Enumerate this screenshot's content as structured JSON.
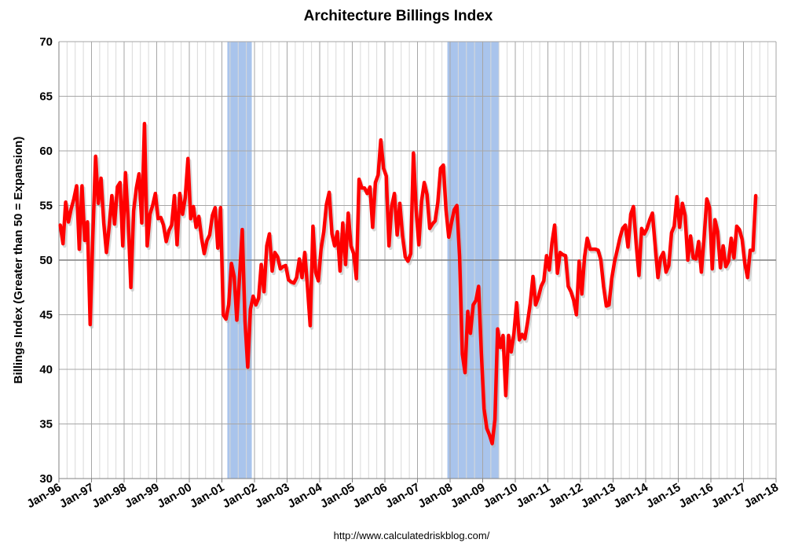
{
  "chart_data": {
    "type": "line",
    "title": "Architecture Billings Index",
    "ylabel": "Billings Index (Greater than 50 = Expansion)",
    "xlabel": "",
    "source": "http://www.calculatedriskblog.com/",
    "ylim": [
      30,
      70
    ],
    "yticks": [
      "30",
      "35",
      "40",
      "45",
      "50",
      "55",
      "60",
      "65",
      "70"
    ],
    "x_axis": {
      "start": "1996-01",
      "end": "2018-01",
      "unit": "month"
    },
    "xtick_labels": [
      "Jan-96",
      "Jan-97",
      "Jan-98",
      "Jan-99",
      "Jan-00",
      "Jan-01",
      "Jan-02",
      "Jan-03",
      "Jan-04",
      "Jan-05",
      "Jan-06",
      "Jan-07",
      "Jan-08",
      "Jan-09",
      "Jan-10",
      "Jan-11",
      "Jan-12",
      "Jan-13",
      "Jan-14",
      "Jan-15",
      "Jan-16",
      "Jan-17",
      "Jan-18"
    ],
    "grid": {
      "horizontal": true,
      "vertical_monthly": true
    },
    "reference_line": 50,
    "recessions": [
      {
        "start": "2001-03",
        "end": "2001-11"
      },
      {
        "start": "2007-12",
        "end": "2009-06"
      }
    ],
    "colors": {
      "series": "#ff0000",
      "recession": "#a9c4ec",
      "reference": "#7f7f7f",
      "grid_major": "#a6a6a6",
      "grid_minor": "#d9d9d9"
    },
    "series": [
      {
        "start": "1996-01",
        "frequency": "monthly",
        "values": [
          53.2,
          51.5,
          55.3,
          53.5,
          54.7,
          55.6,
          56.8,
          51.0,
          56.8,
          51.8,
          53.5,
          44.1,
          52.3,
          59.5,
          55.2,
          57.5,
          53.4,
          50.7,
          53.1,
          55.9,
          53.3,
          56.7,
          57.1,
          51.3,
          58.0,
          53.6,
          47.5,
          54.5,
          56.6,
          57.9,
          53.4,
          62.5,
          51.3,
          54.2,
          55.0,
          56.1,
          53.8,
          53.9,
          53.2,
          51.7,
          52.7,
          53.2,
          55.9,
          51.4,
          56.1,
          54.2,
          55.7,
          59.3,
          53.8,
          54.9,
          53.0,
          54.0,
          52.0,
          50.6,
          51.8,
          52.3,
          54.1,
          54.8,
          51.1,
          54.8,
          45.0,
          44.6,
          45.9,
          49.7,
          48.5,
          44.5,
          48.5,
          52.8,
          44.4,
          40.2,
          45.5,
          46.7,
          45.9,
          46.5,
          49.6,
          47.1,
          51.3,
          52.4,
          49.0,
          50.7,
          50.3,
          49.2,
          49.4,
          49.5,
          48.2,
          48.0,
          47.9,
          48.4,
          50.1,
          48.4,
          50.7,
          47.6,
          44.0,
          53.1,
          48.9,
          48.1,
          51.0,
          52.6,
          55.1,
          56.2,
          52.4,
          51.3,
          52.6,
          49.0,
          53.4,
          49.6,
          54.3,
          51.3,
          50.6,
          48.3,
          57.4,
          56.6,
          56.6,
          56.1,
          56.7,
          53.0,
          57.1,
          57.8,
          61.0,
          58.4,
          57.7,
          51.3,
          54.9,
          56.1,
          52.3,
          55.2,
          52.2,
          50.3,
          49.9,
          50.6,
          59.8,
          54.6,
          51.4,
          55.4,
          57.1,
          56.0,
          52.9,
          53.3,
          53.6,
          55.3,
          58.4,
          58.7,
          54.6,
          52.1,
          53.4,
          54.6,
          55.0,
          50.3,
          41.4,
          39.7,
          45.3,
          43.3,
          45.9,
          46.3,
          47.6,
          41.5,
          36.4,
          34.6,
          34.0,
          33.2,
          35.4,
          43.7,
          42.0,
          43.1,
          37.6,
          43.1,
          41.6,
          43.3,
          46.1,
          42.7,
          43.2,
          42.8,
          44.3,
          46.0,
          48.5,
          45.9,
          46.6,
          47.6,
          48.1,
          50.4,
          49.1,
          51.6,
          53.2,
          48.8,
          50.7,
          50.5,
          50.4,
          47.6,
          47.1,
          46.3,
          45.0,
          49.9,
          46.9,
          50.3,
          52.0,
          51.0,
          51.0,
          51.0,
          50.9,
          50.0,
          47.6,
          45.8,
          45.9,
          48.3,
          49.8,
          50.9,
          52.0,
          52.9,
          53.2,
          51.2,
          54.2,
          54.9,
          51.5,
          48.6,
          52.9,
          52.4,
          52.9,
          53.7,
          54.3,
          51.3,
          48.4,
          50.2,
          50.7,
          48.9,
          49.5,
          52.5,
          53.1,
          55.8,
          53.0,
          55.2,
          54.1,
          50.0,
          52.2,
          50.2,
          50.1,
          51.7,
          48.9,
          52.1,
          55.6,
          54.8,
          49.2,
          53.7,
          52.6,
          49.3,
          51.3,
          49.4,
          49.9,
          52.0,
          50.2,
          53.1,
          52.8,
          51.9,
          49.7,
          48.4,
          50.9,
          50.9,
          55.9
        ]
      }
    ]
  }
}
